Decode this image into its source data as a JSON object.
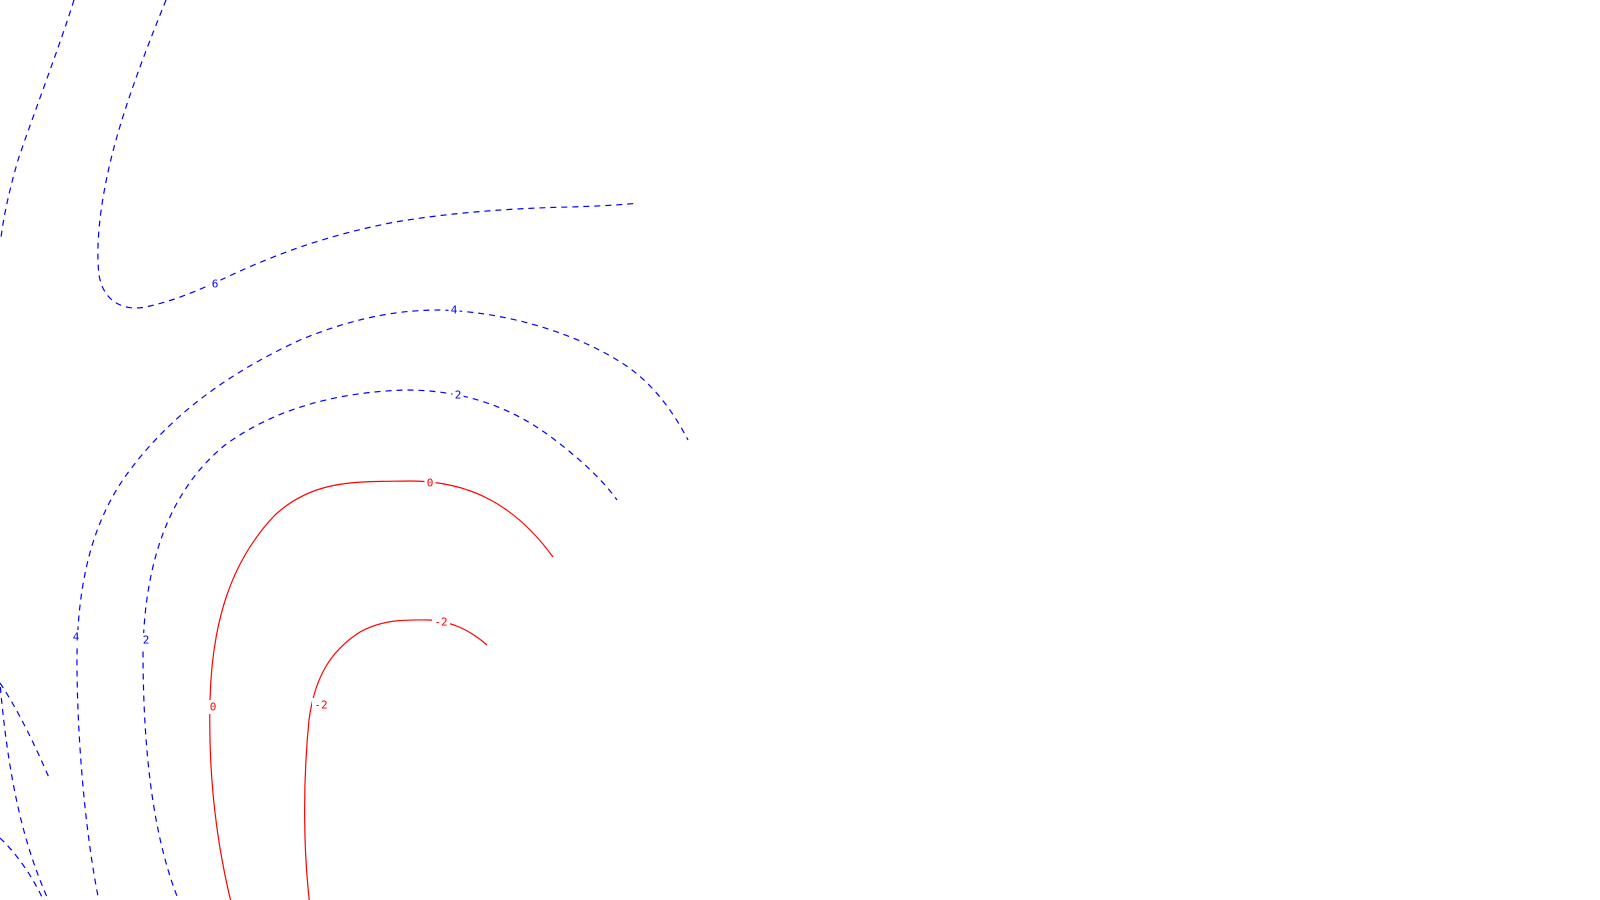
{
  "map": {
    "colors": {
      "positive": "#0000ff",
      "negative": "#ff0000",
      "background": "#ffffff"
    },
    "contours": [
      {
        "id": "c6-outer",
        "level": 6,
        "style": "dashed",
        "labeled": false
      },
      {
        "id": "c6-inner",
        "level": 6,
        "style": "dashed",
        "labeled": true
      },
      {
        "id": "c4-arc",
        "level": 4,
        "style": "dashed",
        "labeled": true
      },
      {
        "id": "c2-arc",
        "level": 2,
        "style": "dashed",
        "labeled": true
      },
      {
        "id": "c0-arc",
        "level": 0,
        "style": "solid",
        "labeled": true
      },
      {
        "id": "cm2-arc",
        "level": -2,
        "style": "solid",
        "labeled": true
      },
      {
        "id": "c-corner-a",
        "level": null,
        "style": "dashed",
        "labeled": false
      },
      {
        "id": "c-corner-b",
        "level": null,
        "style": "dashed",
        "labeled": false
      }
    ],
    "labels": [
      {
        "contour": "c6-inner",
        "text": "6"
      },
      {
        "contour": "c4-arc",
        "text": "4"
      },
      {
        "contour": "c4-arc",
        "text": "4"
      },
      {
        "contour": "c2-arc",
        "text": "2"
      },
      {
        "contour": "c2-arc",
        "text": "2"
      },
      {
        "contour": "c0-arc",
        "text": "0"
      },
      {
        "contour": "c0-arc",
        "text": "0"
      },
      {
        "contour": "cm2-arc",
        "text": "-2"
      },
      {
        "contour": "cm2-arc",
        "text": "-2"
      }
    ]
  }
}
